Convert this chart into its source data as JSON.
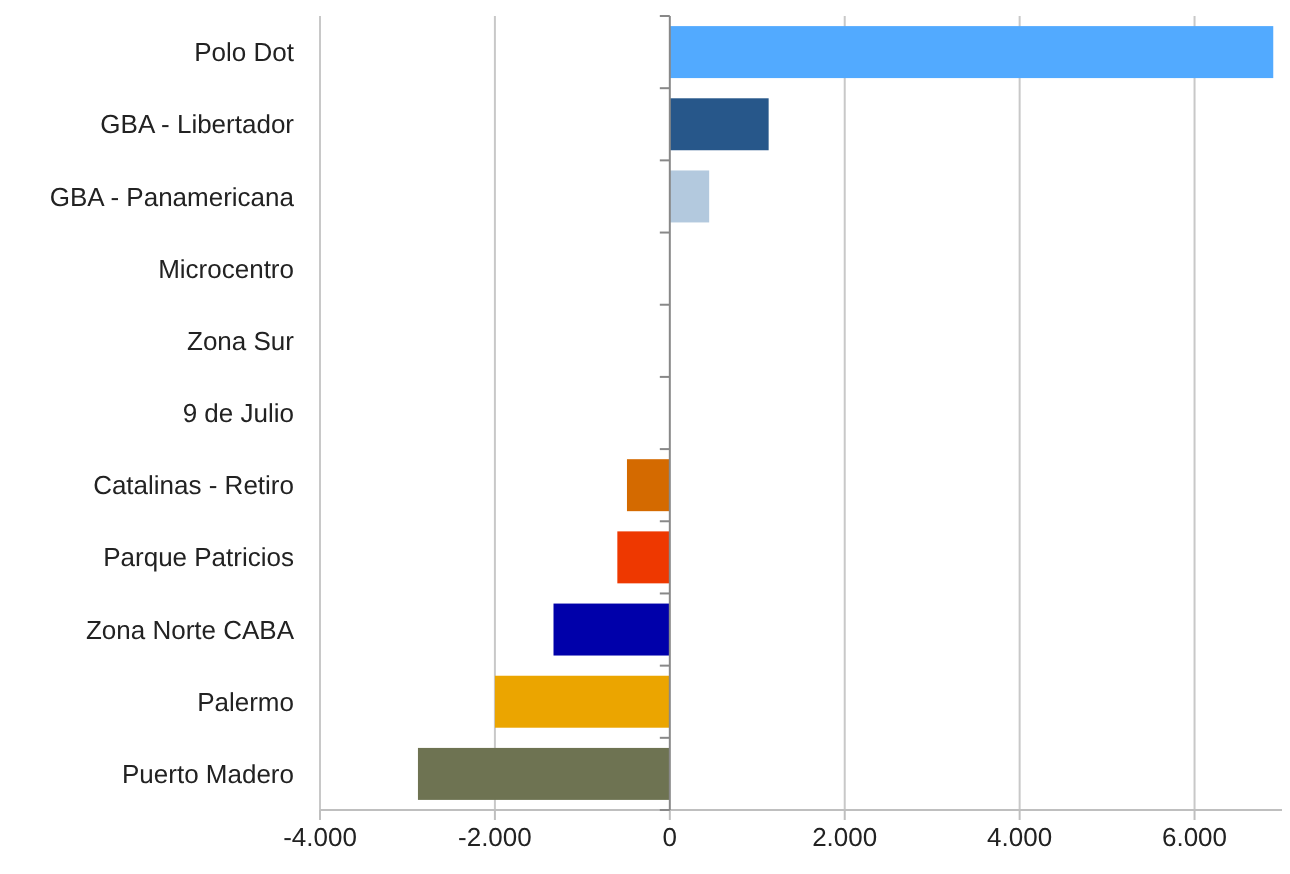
{
  "chart_data": {
    "type": "bar",
    "orientation": "horizontal",
    "categories": [
      "Polo Dot",
      "GBA - Libertador",
      "GBA - Panamericana",
      "Microcentro",
      "Zona Sur",
      "9 de Julio",
      "Catalinas - Retiro",
      "Parque Patricios",
      "Zona Norte CABA",
      "Palermo",
      "Puerto Madero"
    ],
    "values": [
      6900,
      1130,
      450,
      0,
      0,
      0,
      -490,
      -600,
      -1330,
      -2000,
      -2880
    ],
    "colors": [
      "#52aaff",
      "#27578a",
      "#b3c9de",
      "#cccccc",
      "#cccccc",
      "#cccccc",
      "#d46a00",
      "#ee3800",
      "#0000aa",
      "#eba500",
      "#6e7352"
    ],
    "xlim": [
      -4000,
      7000
    ],
    "xticks": [
      {
        "value": -4000,
        "label": "-4.000"
      },
      {
        "value": -2000,
        "label": "-2.000"
      },
      0,
      {
        "value": 2000,
        "label": "2.000"
      },
      {
        "value": 4000,
        "label": "4.000"
      },
      {
        "value": 6000,
        "label": "6.000"
      }
    ],
    "grid": "x"
  }
}
